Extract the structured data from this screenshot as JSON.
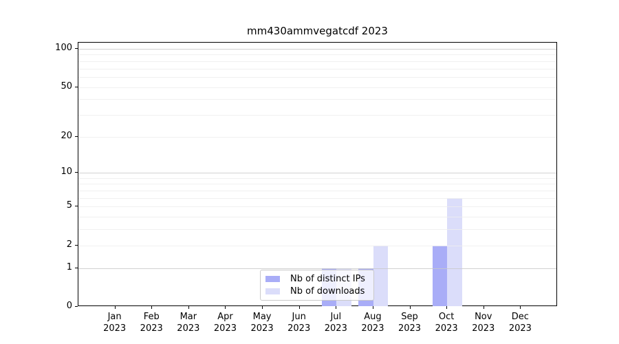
{
  "chart_data": {
    "type": "bar",
    "title": "mm430ammvegatcdf 2023",
    "categories": [
      "Jan",
      "Feb",
      "Mar",
      "Apr",
      "May",
      "Jun",
      "Jul",
      "Aug",
      "Sep",
      "Oct",
      "Nov",
      "Dec"
    ],
    "x_label_year": "2023",
    "series": [
      {
        "name": "Nb of distinct IPs",
        "color": "#a9adf7",
        "values": [
          0,
          0,
          0,
          0,
          0,
          0,
          1,
          1,
          0,
          2,
          0,
          0
        ]
      },
      {
        "name": "Nb of downloads",
        "color": "#dbddfa",
        "values": [
          0,
          0,
          0,
          0,
          0,
          0,
          1,
          2,
          0,
          6,
          0,
          0
        ]
      }
    ],
    "yscale": "log1p",
    "ylim": [
      0,
      112
    ],
    "ytick_values": [
      0,
      1,
      2,
      5,
      10,
      20,
      50,
      100
    ],
    "ytick_labels": [
      "0",
      "1",
      "2",
      "5",
      "10",
      "20",
      "50",
      "100"
    ],
    "major_grid_values": [
      1,
      10,
      100
    ],
    "minor_grid_values": [
      2,
      3,
      4,
      5,
      6,
      7,
      8,
      9,
      20,
      30,
      40,
      50,
      60,
      70,
      80,
      90
    ],
    "grid": "horizontal",
    "legend_position": "lower center",
    "colors": {
      "major_grid": "#c9c9c9",
      "minor_grid": "#ededed",
      "axis": "#000000",
      "text": "#000000",
      "background": "#ffffff"
    }
  }
}
